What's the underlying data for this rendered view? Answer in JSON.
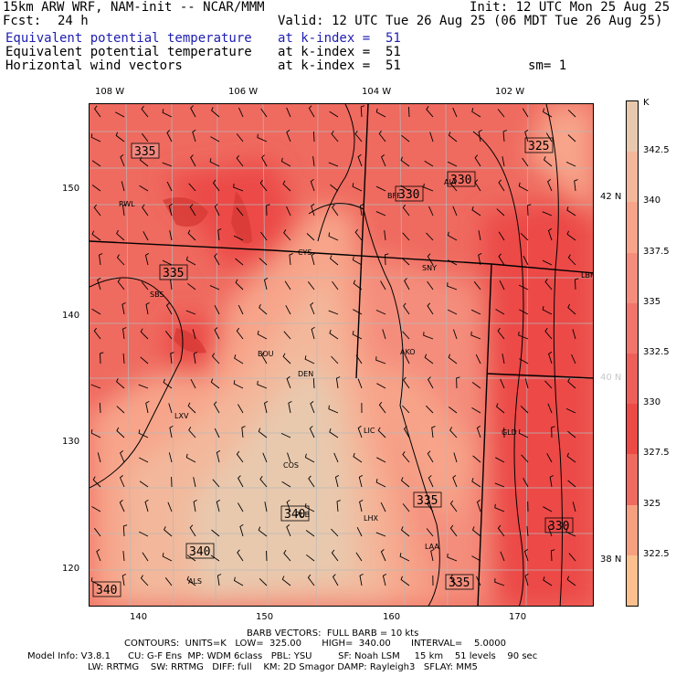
{
  "header": {
    "model": "15km ARW WRF, NAM-init -- NCAR/MMM",
    "init": "Init: 12 UTC Mon 25 Aug 25",
    "fcst_label": "Fcst:",
    "fcst_value": "24 h",
    "valid": "Valid: 12 UTC Tue 26 Aug 25 (06 MDT Tue 26 Aug 25)",
    "fields": [
      {
        "name": "Equivalent potential temperature",
        "level": "at k-index =  51",
        "color": "#2020b0"
      },
      {
        "name": "Equivalent potential temperature",
        "level": "at k-index =  51",
        "color": "#000000"
      },
      {
        "name": "Horizontal wind vectors",
        "level": "at k-index =  51",
        "color": "#000000"
      }
    ],
    "smooth": "sm= 1"
  },
  "axes": {
    "lon_labels": [
      "108 W",
      "106 W",
      "104 W",
      "102 W"
    ],
    "lat_labels": [
      "42 N",
      "40 N",
      "38 N"
    ],
    "x_ticks": [
      "140",
      "150",
      "160",
      "170"
    ],
    "y_ticks": [
      "150",
      "140",
      "130",
      "120"
    ]
  },
  "map": {
    "cities": [
      "RWL",
      "BFF",
      "AIA",
      "CYS",
      "SNY",
      "LBF",
      "SBS",
      "BOU",
      "DEN",
      "AKO",
      "LXV",
      "LIC",
      "GLD",
      "COS",
      "PUB",
      "LHX",
      "LAA",
      "ALS"
    ],
    "contour_labels": [
      "335",
      "330",
      "330",
      "325",
      "335",
      "340",
      "340",
      "335",
      "330",
      "340",
      "335"
    ]
  },
  "colorbar": {
    "unit": "K",
    "labels": [
      "342.5",
      "340",
      "337.5",
      "335",
      "332.5",
      "330",
      "327.5",
      "325",
      "322.5"
    ],
    "colors": [
      "#e8c9ae",
      "#f3b89b",
      "#f7a48a",
      "#f48d7c",
      "#f2756c",
      "#ee5f5a",
      "#ec4a46",
      "#ef6a5f",
      "#f7a07f",
      "#fbc08e"
    ]
  },
  "footer": {
    "barb": "BARB VECTORS:  FULL BARB = 10 kts",
    "contours": "CONTOURS:  UNITS=K   LOW=  325.00       HIGH=  340.00       INTERVAL=    5.0000",
    "model_info": "Model Info: V3.8.1      CU: G-F Ens  MP: WDM 6class   PBL: YSU         SF: Noah LSM     15 km    51 levels    90 sec",
    "physics": "LW: RRTMG    SW: RRTMG   DIFF: full    KM: 2D Smagor DAMP: Rayleigh3   SFLAY: MM5"
  }
}
